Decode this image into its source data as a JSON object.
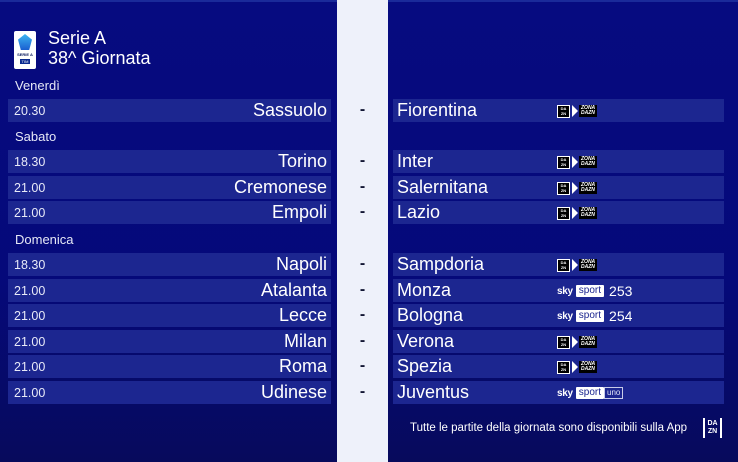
{
  "header": {
    "league_logo": "serie-a-tim-logo",
    "logo_text": "SERIE A",
    "logo_sponsor": "TIM",
    "title": "Serie A",
    "subtitle": "38^ Giornata"
  },
  "colors": {
    "background": "#05097a",
    "row": "#1c2690",
    "middle_strip": "#eef1fa",
    "text": "#ffffff"
  },
  "days": [
    {
      "label": "Venerdì"
    },
    {
      "label": "Sabato"
    },
    {
      "label": "Domenica"
    }
  ],
  "matches": [
    {
      "time": "20.30",
      "home": "Sassuolo",
      "sep": "-",
      "away": "Fiorentina",
      "broadcaster": "dazn-zona-dazn",
      "channel": ""
    },
    {
      "time": "18.30",
      "home": "Torino",
      "sep": "-",
      "away": "Inter",
      "broadcaster": "dazn-zona-dazn",
      "channel": ""
    },
    {
      "time": "21.00",
      "home": "Cremonese",
      "sep": "-",
      "away": "Salernitana",
      "broadcaster": "dazn-zona-dazn",
      "channel": ""
    },
    {
      "time": "21.00",
      "home": "Empoli",
      "sep": "-",
      "away": "Lazio",
      "broadcaster": "dazn-zona-dazn",
      "channel": ""
    },
    {
      "time": "18.30",
      "home": "Napoli",
      "sep": "-",
      "away": "Sampdoria",
      "broadcaster": "dazn-zona-dazn",
      "channel": ""
    },
    {
      "time": "21.00",
      "home": "Atalanta",
      "sep": "-",
      "away": "Monza",
      "broadcaster": "sky-sport",
      "channel": "253"
    },
    {
      "time": "21.00",
      "home": "Lecce",
      "sep": "-",
      "away": "Bologna",
      "broadcaster": "sky-sport",
      "channel": "254"
    },
    {
      "time": "21.00",
      "home": "Milan",
      "sep": "-",
      "away": "Verona",
      "broadcaster": "dazn-zona-dazn",
      "channel": ""
    },
    {
      "time": "21.00",
      "home": "Roma",
      "sep": "-",
      "away": "Spezia",
      "broadcaster": "dazn-zona-dazn",
      "channel": ""
    },
    {
      "time": "21.00",
      "home": "Udinese",
      "sep": "-",
      "away": "Juventus",
      "broadcaster": "sky-sport-uno",
      "channel": ""
    }
  ],
  "logos": {
    "dazn_top": "DA",
    "dazn_bottom": "ZN",
    "zona_top": "ZONA",
    "zona_bottom": "DAZN",
    "sky": "sky",
    "sport": "sport",
    "uno": "uno"
  },
  "footer": {
    "text": "Tutte le partite della giornata sono disponibili sulla App",
    "app_logo_top": "DA",
    "app_logo_bottom": "ZN"
  }
}
